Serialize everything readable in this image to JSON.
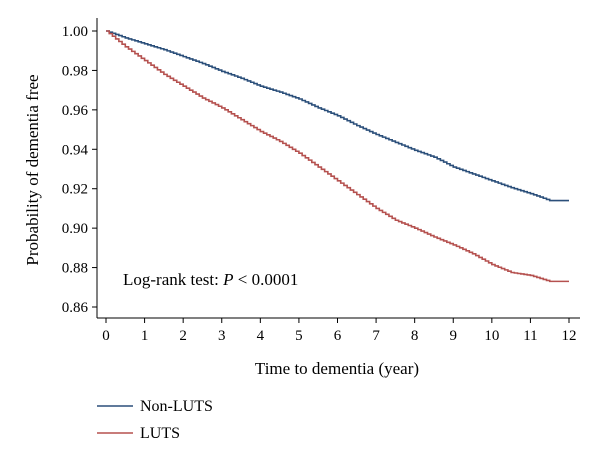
{
  "chart_data": {
    "type": "line",
    "xlabel": "Time to dementia (year)",
    "ylabel": "Probability of dementia free",
    "xlim": [
      0,
      12
    ],
    "ylim": [
      0.86,
      1.0
    ],
    "x_ticks": [
      "0",
      "1",
      "2",
      "3",
      "4",
      "5",
      "6",
      "7",
      "8",
      "9",
      "10",
      "11",
      "12"
    ],
    "y_ticks": [
      "0.86",
      "0.88",
      "0.90",
      "0.92",
      "0.94",
      "0.96",
      "0.98",
      "1.00"
    ],
    "annotation": {
      "prefix": "Log-rank test: ",
      "p": "P",
      "suffix": " < 0.0001"
    },
    "legend_position": "bottom-left",
    "grid": false,
    "series": [
      {
        "name": "Non-LUTS",
        "color": "#2b4f7a",
        "x": [
          0,
          0.5,
          1,
          1.5,
          2,
          2.5,
          3,
          3.5,
          4,
          4.5,
          5,
          5.5,
          6,
          6.5,
          7,
          7.5,
          8,
          8.5,
          9,
          9.5,
          10,
          10.5,
          11,
          11.5,
          12
        ],
        "y": [
          1.0,
          0.9965,
          0.9935,
          0.9905,
          0.987,
          0.9835,
          0.9795,
          0.976,
          0.972,
          0.969,
          0.9655,
          0.961,
          0.957,
          0.952,
          0.9475,
          0.9435,
          0.9395,
          0.936,
          0.931,
          0.9275,
          0.924,
          0.9205,
          0.9175,
          0.914,
          0.914
        ]
      },
      {
        "name": "LUTS",
        "color": "#b5514f",
        "x": [
          0,
          0.5,
          1,
          1.5,
          2,
          2.5,
          3,
          3.5,
          4,
          4.5,
          5,
          5.5,
          6,
          6.5,
          7,
          7.5,
          8,
          8.5,
          9,
          9.5,
          10,
          10.5,
          11,
          11.5,
          12
        ],
        "y": [
          1.0,
          0.992,
          0.985,
          0.978,
          0.972,
          0.966,
          0.961,
          0.955,
          0.949,
          0.944,
          0.938,
          0.931,
          0.924,
          0.917,
          0.91,
          0.904,
          0.9,
          0.8955,
          0.8915,
          0.887,
          0.8815,
          0.8775,
          0.876,
          0.873,
          0.873
        ]
      }
    ]
  }
}
